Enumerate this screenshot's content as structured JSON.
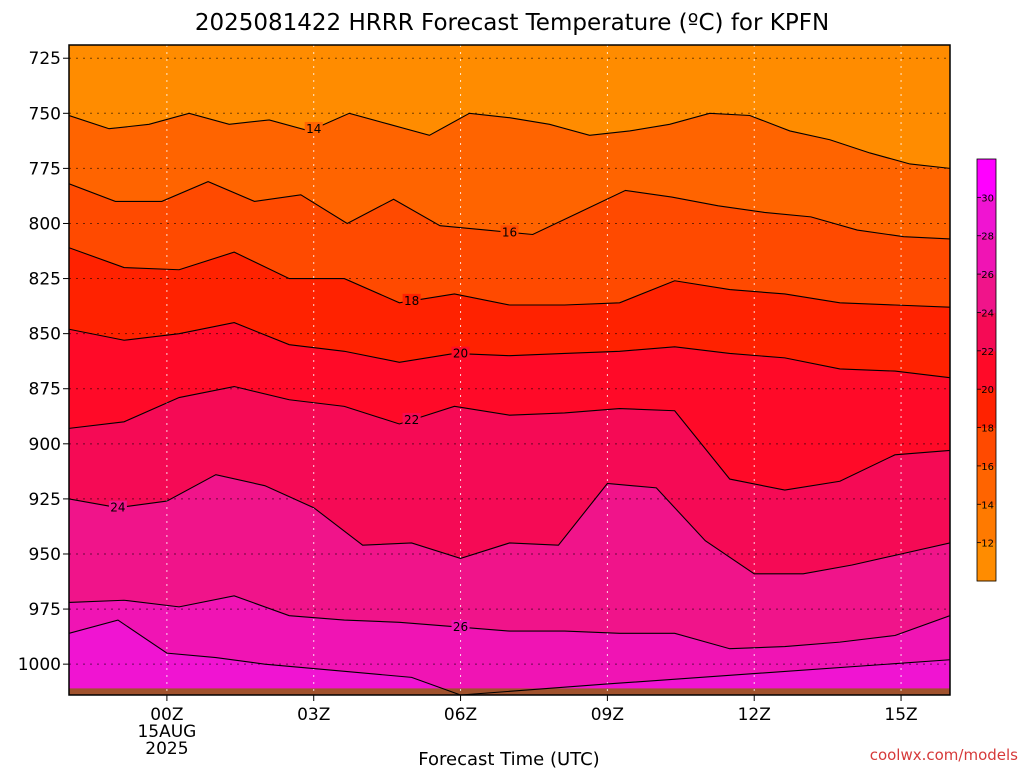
{
  "chart_data": {
    "type": "heatmap",
    "title": "2025081422 HRRR Forecast Temperature (ºC) for KPFN",
    "xlabel": "Forecast Time (UTC)",
    "ylabel": "",
    "x_hours": [
      -2,
      16
    ],
    "y_range": [
      719,
      1014
    ],
    "y_scale": "pressure (reversed)",
    "y_ticks": [
      "725",
      "750",
      "775",
      "800",
      "825",
      "850",
      "875",
      "900",
      "925",
      "950",
      "975",
      "1000"
    ],
    "x_ticks": [
      {
        "hour": 0,
        "label": "00Z",
        "sub": [
          "15AUG",
          "2025"
        ]
      },
      {
        "hour": 3,
        "label": "03Z",
        "sub": []
      },
      {
        "hour": 6,
        "label": "06Z",
        "sub": []
      },
      {
        "hour": 9,
        "label": "09Z",
        "sub": []
      },
      {
        "hour": 12,
        "label": "12Z",
        "sub": []
      },
      {
        "hour": 15,
        "label": "15Z",
        "sub": []
      }
    ],
    "grid": true,
    "colorbar": {
      "ticks": [
        "12",
        "14",
        "16",
        "18",
        "20",
        "22",
        "24",
        "26",
        "28",
        "30"
      ],
      "colors": [
        "#ff8c00",
        "#ff7a00",
        "#ff6400",
        "#ff4a00",
        "#ff2200",
        "#ff0a28",
        "#f50a55",
        "#f0148a",
        "#f014b4",
        "#f014d2",
        "#ff00ff"
      ]
    },
    "contours": [
      {
        "value": 14,
        "label": "14",
        "label_at": 3.0,
        "pressures": [
          751,
          757,
          755,
          750,
          755,
          753,
          758,
          750,
          755,
          760,
          750,
          752,
          755,
          760,
          758,
          755,
          750,
          751,
          758,
          762,
          768,
          773,
          775
        ]
      },
      {
        "value": 16,
        "label": "16",
        "label_at": 7.0,
        "pressures": [
          782,
          790,
          790,
          781,
          790,
          787,
          800,
          789,
          801,
          803,
          805,
          795,
          785,
          788,
          792,
          795,
          797,
          803,
          806,
          807
        ]
      },
      {
        "value": 18,
        "label": "18",
        "label_at": 5.0,
        "pressures": [
          811,
          820,
          821,
          813,
          825,
          825,
          836,
          832,
          837,
          837,
          836,
          826,
          830,
          832,
          836,
          837,
          838
        ]
      },
      {
        "value": 20,
        "label": "20",
        "label_at": 6.0,
        "pressures": [
          848,
          853,
          850,
          845,
          855,
          858,
          863,
          859,
          860,
          859,
          858,
          856,
          859,
          861,
          866,
          867,
          870
        ]
      },
      {
        "value": 22,
        "label": "22",
        "label_at": 5.0,
        "pressures": [
          893,
          890,
          879,
          874,
          880,
          883,
          891,
          883,
          887,
          886,
          884,
          885,
          916,
          921,
          917,
          905,
          903
        ]
      },
      {
        "value": 24,
        "label": "24",
        "label_at": -1.0,
        "pressures": [
          925,
          929,
          926,
          914,
          919,
          929,
          946,
          945,
          952,
          945,
          946,
          918,
          920,
          944,
          959,
          959,
          955,
          950,
          945
        ]
      },
      {
        "value": 26,
        "label": "26",
        "label_at": 6.0,
        "pressures": [
          972,
          971,
          974,
          969,
          978,
          980,
          981,
          983,
          985,
          985,
          986,
          986,
          993,
          992,
          990,
          987,
          978
        ]
      },
      {
        "value": 28,
        "label": "",
        "label_at": null,
        "pressures": [
          986,
          980,
          995,
          997,
          1000,
          1002,
          1006,
          1014,
          1009,
          998
        ]
      }
    ]
  },
  "credit": "coolwx.com/models"
}
